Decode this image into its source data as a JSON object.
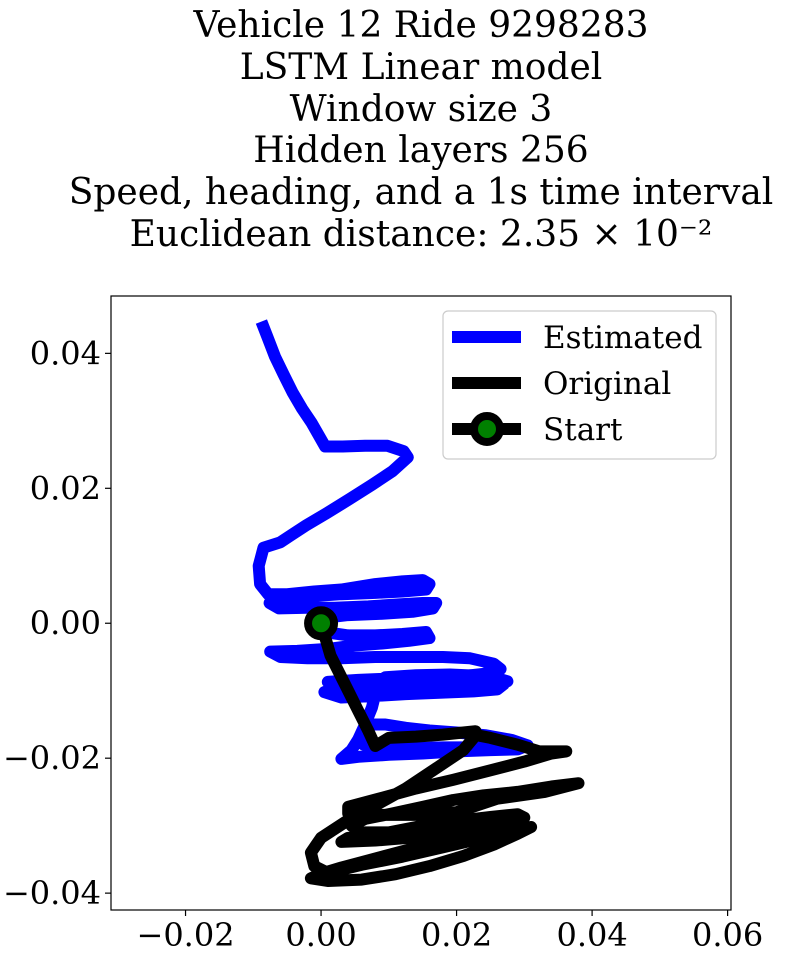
{
  "chart_data": {
    "type": "line",
    "title_lines": [
      "Vehicle 12 Ride 9298283",
      "LSTM Linear model",
      "Window size 3",
      "Hidden layers 256",
      "Speed, heading, and a 1s time interval",
      "Euclidean distance: 2.35 × 10⁻²"
    ],
    "xlabel": "",
    "ylabel": "",
    "xlim": [
      -0.031,
      0.0605
    ],
    "ylim": [
      -0.0425,
      0.0485
    ],
    "x_ticks": [
      -0.02,
      0.0,
      0.02,
      0.04,
      0.06
    ],
    "x_tick_labels": [
      "−0.02",
      "0.00",
      "0.02",
      "0.04",
      "0.06"
    ],
    "y_ticks": [
      -0.04,
      -0.02,
      0.0,
      0.02,
      0.04
    ],
    "y_tick_labels": [
      "−0.04",
      "−0.02",
      "0.00",
      "0.02",
      "0.04"
    ],
    "grid": false,
    "legend_position": "top-right",
    "series": [
      {
        "name": "Estimated",
        "color": "#0000ff",
        "points": [
          [
            -0.0088,
            0.0447
          ],
          [
            -0.0079,
            0.0424
          ],
          [
            -0.0068,
            0.0395
          ],
          [
            -0.0055,
            0.0368
          ],
          [
            -0.0042,
            0.0342
          ],
          [
            -0.0028,
            0.0318
          ],
          [
            -0.0014,
            0.0297
          ],
          [
            -0.0002,
            0.0276
          ],
          [
            0.0006,
            0.0262
          ],
          [
            0.0032,
            0.0262
          ],
          [
            0.0065,
            0.0263
          ],
          [
            0.0098,
            0.0263
          ],
          [
            0.0122,
            0.0255
          ],
          [
            0.0128,
            0.0246
          ],
          [
            0.0105,
            0.0225
          ],
          [
            0.0075,
            0.0205
          ],
          [
            0.0042,
            0.0184
          ],
          [
            0.0008,
            0.0163
          ],
          [
            -0.0022,
            0.0145
          ],
          [
            -0.0045,
            0.013
          ],
          [
            -0.006,
            0.012
          ],
          [
            -0.0085,
            0.0112
          ],
          [
            -0.0092,
            0.0085
          ],
          [
            -0.009,
            0.0058
          ],
          [
            -0.0078,
            0.0043
          ],
          [
            -0.005,
            0.0043
          ],
          [
            -0.001,
            0.0047
          ],
          [
            0.003,
            0.005
          ],
          [
            0.008,
            0.0058
          ],
          [
            0.012,
            0.0062
          ],
          [
            0.015,
            0.0064
          ],
          [
            0.016,
            0.0058
          ],
          [
            0.0155,
            0.005
          ],
          [
            0.012,
            0.0047
          ],
          [
            0.008,
            0.0045
          ],
          [
            0.003,
            0.0043
          ],
          [
            -0.0015,
            0.004
          ],
          [
            -0.0055,
            0.0037
          ],
          [
            -0.0076,
            0.003
          ],
          [
            -0.0062,
            0.0022
          ],
          [
            -0.002,
            0.0023
          ],
          [
            0.002,
            0.0023
          ],
          [
            0.007,
            0.0025
          ],
          [
            0.0115,
            0.0028
          ],
          [
            0.015,
            0.003
          ],
          [
            0.017,
            0.003
          ],
          [
            0.0165,
            0.0022
          ],
          [
            0.0135,
            0.0017
          ],
          [
            0.009,
            0.0014
          ],
          [
            0.004,
            0.0012
          ],
          [
            0.0005,
            0.0008
          ],
          [
            -0.001,
            0.0002
          ],
          [
            0.0005,
            -0.0013
          ],
          [
            0.004,
            -0.0018
          ],
          [
            0.008,
            -0.0018
          ],
          [
            0.012,
            -0.0016
          ],
          [
            0.0155,
            -0.0013
          ],
          [
            0.016,
            -0.0022
          ],
          [
            0.013,
            -0.0026
          ],
          [
            0.009,
            -0.003
          ],
          [
            0.005,
            -0.0033
          ],
          [
            0.001,
            -0.0038
          ],
          [
            -0.0035,
            -0.0041
          ],
          [
            -0.0075,
            -0.0042
          ],
          [
            -0.006,
            -0.005
          ],
          [
            -0.002,
            -0.0052
          ],
          [
            0.003,
            -0.0052
          ],
          [
            0.008,
            -0.005
          ],
          [
            0.013,
            -0.005
          ],
          [
            0.018,
            -0.005
          ],
          [
            0.022,
            -0.0052
          ],
          [
            0.0255,
            -0.006
          ],
          [
            0.0265,
            -0.0068
          ],
          [
            0.024,
            -0.0075
          ],
          [
            0.0195,
            -0.008
          ],
          [
            0.015,
            -0.0082
          ],
          [
            0.01,
            -0.0082
          ],
          [
            0.0055,
            -0.0084
          ],
          [
            0.001,
            -0.0087
          ],
          [
            0.0025,
            -0.0095
          ],
          [
            0.008,
            -0.0097
          ],
          [
            0.014,
            -0.0096
          ],
          [
            0.02,
            -0.0094
          ],
          [
            0.0255,
            -0.0092
          ],
          [
            0.0275,
            -0.0086
          ],
          [
            0.0255,
            -0.008
          ],
          [
            0.02,
            -0.008
          ],
          [
            0.014,
            -0.008
          ],
          [
            0.008,
            -0.0085
          ],
          [
            0.003,
            -0.0092
          ],
          [
            0.0005,
            -0.0102
          ],
          [
            0.003,
            -0.011
          ],
          [
            0.0075,
            -0.0108
          ],
          [
            0.0125,
            -0.0105
          ],
          [
            0.0175,
            -0.0103
          ],
          [
            0.0225,
            -0.0101
          ],
          [
            0.026,
            -0.0098
          ],
          [
            0.027,
            -0.009
          ],
          [
            0.0262,
            -0.0083
          ],
          [
            0.0235,
            -0.0078
          ],
          [
            0.019,
            -0.0076
          ],
          [
            0.014,
            -0.0077
          ],
          [
            0.0095,
            -0.008
          ],
          [
            0.008,
            -0.009
          ],
          [
            0.008,
            -0.0105
          ],
          [
            0.0075,
            -0.0125
          ],
          [
            0.0065,
            -0.015
          ],
          [
            0.0055,
            -0.0172
          ],
          [
            0.0045,
            -0.0188
          ],
          [
            0.003,
            -0.0201
          ],
          [
            0.0055,
            -0.0198
          ],
          [
            0.01,
            -0.0195
          ],
          [
            0.015,
            -0.0193
          ],
          [
            0.02,
            -0.019
          ],
          [
            0.025,
            -0.0188
          ],
          [
            0.029,
            -0.0187
          ],
          [
            0.0305,
            -0.0181
          ],
          [
            0.0282,
            -0.0173
          ],
          [
            0.0242,
            -0.0166
          ],
          [
            0.02,
            -0.0162
          ],
          [
            0.016,
            -0.0159
          ],
          [
            0.0125,
            -0.0155
          ],
          [
            0.0095,
            -0.015
          ],
          [
            0.007,
            -0.015
          ],
          [
            0.0063,
            -0.018
          ],
          [
            0.012,
            -0.0185
          ],
          [
            0.018,
            -0.0184
          ],
          [
            0.024,
            -0.0184
          ],
          [
            0.029,
            -0.0183
          ]
        ]
      },
      {
        "name": "Original",
        "color": "#000000",
        "points": [
          [
            0.0,
            0.0
          ],
          [
            0.0014,
            -0.0048
          ],
          [
            0.0035,
            -0.009
          ],
          [
            0.0055,
            -0.013
          ],
          [
            0.007,
            -0.016
          ],
          [
            0.008,
            -0.0182
          ],
          [
            0.01,
            -0.017
          ],
          [
            0.014,
            -0.0168
          ],
          [
            0.018,
            -0.0165
          ],
          [
            0.021,
            -0.0162
          ],
          [
            0.0228,
            -0.016
          ],
          [
            0.0215,
            -0.0163
          ],
          [
            0.025,
            -0.017
          ],
          [
            0.029,
            -0.018
          ],
          [
            0.0322,
            -0.019
          ],
          [
            0.0348,
            -0.019
          ],
          [
            0.0362,
            -0.019
          ],
          [
            0.034,
            -0.0193
          ],
          [
            0.03,
            -0.0205
          ],
          [
            0.025,
            -0.0218
          ],
          [
            0.0195,
            -0.0232
          ],
          [
            0.014,
            -0.0245
          ],
          [
            0.0085,
            -0.026
          ],
          [
            0.004,
            -0.0272
          ],
          [
            0.004,
            -0.0282
          ],
          [
            0.0085,
            -0.0284
          ],
          [
            0.014,
            -0.0284
          ],
          [
            0.02,
            -0.028
          ],
          [
            0.026,
            -0.026
          ],
          [
            0.033,
            -0.025
          ],
          [
            0.038,
            -0.0237
          ],
          [
            0.034,
            -0.0242
          ],
          [
            0.029,
            -0.025
          ],
          [
            0.024,
            -0.0255
          ],
          [
            0.0195,
            -0.0262
          ],
          [
            0.015,
            -0.0272
          ],
          [
            0.0105,
            -0.0282
          ],
          [
            0.0065,
            -0.029
          ],
          [
            0.0045,
            -0.03
          ],
          [
            0.006,
            -0.031
          ],
          [
            0.01,
            -0.031
          ],
          [
            0.015,
            -0.03
          ],
          [
            0.02,
            -0.0293
          ],
          [
            0.025,
            -0.0287
          ],
          [
            0.029,
            -0.0283
          ],
          [
            0.03,
            -0.0288
          ],
          [
            0.026,
            -0.0295
          ],
          [
            0.021,
            -0.0302
          ],
          [
            0.0165,
            -0.0308
          ],
          [
            0.012,
            -0.0312
          ],
          [
            0.008,
            -0.0315
          ],
          [
            0.004,
            -0.0318
          ],
          [
            0.003,
            -0.0324
          ],
          [
            0.008,
            -0.0322
          ],
          [
            0.013,
            -0.0318
          ],
          [
            0.018,
            -0.0314
          ],
          [
            0.023,
            -0.031
          ],
          [
            0.028,
            -0.0305
          ],
          [
            0.03,
            -0.03
          ],
          [
            0.027,
            -0.0305
          ],
          [
            0.022,
            -0.0315
          ],
          [
            0.017,
            -0.0325
          ],
          [
            0.012,
            -0.0338
          ],
          [
            0.0075,
            -0.035
          ],
          [
            0.003,
            -0.0362
          ],
          [
            0.0,
            -0.0371
          ],
          [
            -0.0015,
            -0.0378
          ],
          [
            0.001,
            -0.0382
          ],
          [
            0.006,
            -0.038
          ],
          [
            0.011,
            -0.0372
          ],
          [
            0.016,
            -0.036
          ],
          [
            0.021,
            -0.0345
          ],
          [
            0.0255,
            -0.0328
          ],
          [
            0.029,
            -0.0312
          ],
          [
            0.031,
            -0.0302
          ],
          [
            0.0285,
            -0.0308
          ],
          [
            0.024,
            -0.0318
          ],
          [
            0.018,
            -0.0332
          ],
          [
            0.012,
            -0.0346
          ],
          [
            0.006,
            -0.0358
          ],
          [
            0.001,
            -0.037
          ],
          [
            -0.001,
            -0.036
          ],
          [
            -0.0015,
            -0.034
          ],
          [
            0.0,
            -0.0318
          ],
          [
            0.0035,
            -0.0295
          ],
          [
            0.008,
            -0.027
          ],
          [
            0.0125,
            -0.0245
          ],
          [
            0.017,
            -0.0215
          ],
          [
            0.021,
            -0.0188
          ],
          [
            0.0225,
            -0.017
          ]
        ]
      }
    ],
    "start_marker": {
      "name": "Start",
      "x": 0.0,
      "y": 0.0,
      "edge_color": "#000000",
      "face_color": "#008000"
    },
    "legend": [
      "Estimated",
      "Original",
      "Start"
    ]
  }
}
